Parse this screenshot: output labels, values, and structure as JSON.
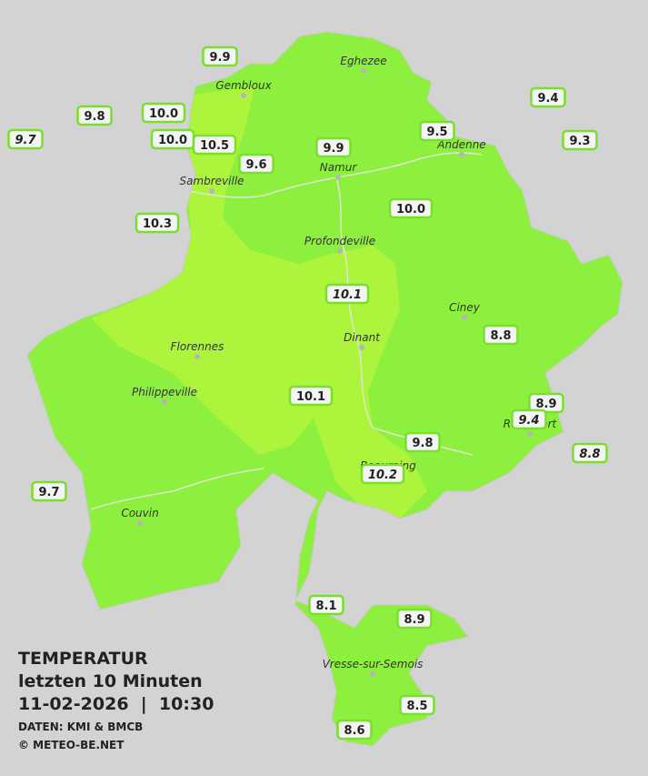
{
  "title": {
    "heading": "TEMPERATUR",
    "subtitle": "letzten 10 Minuten",
    "datetime": "11-02-2026  |  10:30",
    "source": "DATEN: KMI & BMCB",
    "copyright": "© METEO-BE.NET"
  },
  "cities": [
    {
      "name": "Eghezee"
    },
    {
      "name": "Gembloux"
    },
    {
      "name": "Andenne"
    },
    {
      "name": "Namur"
    },
    {
      "name": "Sambreville"
    },
    {
      "name": "Profondeville"
    },
    {
      "name": "Ciney"
    },
    {
      "name": "Dinant"
    },
    {
      "name": "Florennes"
    },
    {
      "name": "Philippeville"
    },
    {
      "name": "Rochefort"
    },
    {
      "name": "Beauraing"
    },
    {
      "name": "Couvin"
    },
    {
      "name": "Vresse-sur-Semois"
    }
  ],
  "stations": [
    {
      "label": "9.9",
      "style": "normal"
    },
    {
      "label": "9.8",
      "style": "normal"
    },
    {
      "label": "10.0",
      "style": "normal"
    },
    {
      "label": "9.7",
      "style": "italic"
    },
    {
      "label": "10.0",
      "style": "normal"
    },
    {
      "label": "10.5",
      "style": "normal"
    },
    {
      "label": "9.6",
      "style": "normal"
    },
    {
      "label": "9.9",
      "style": "normal"
    },
    {
      "label": "9.5",
      "style": "normal"
    },
    {
      "label": "9.4",
      "style": "normal"
    },
    {
      "label": "9.3",
      "style": "normal"
    },
    {
      "label": "10.3",
      "style": "normal"
    },
    {
      "label": "10.0",
      "style": "normal"
    },
    {
      "label": "10.1",
      "style": "italic"
    },
    {
      "label": "8.8",
      "style": "normal"
    },
    {
      "label": "10.1",
      "style": "normal"
    },
    {
      "label": "8.9",
      "style": "normal"
    },
    {
      "label": "9.4",
      "style": "italic"
    },
    {
      "label": "8.8",
      "style": "italic"
    },
    {
      "label": "9.8",
      "style": "normal"
    },
    {
      "label": "10.2",
      "style": "italic"
    },
    {
      "label": "9.7",
      "style": "normal"
    },
    {
      "label": "8.1",
      "style": "normal"
    },
    {
      "label": "8.9",
      "style": "normal"
    },
    {
      "label": "8.5",
      "style": "normal"
    },
    {
      "label": "8.6",
      "style": "normal"
    }
  ]
}
